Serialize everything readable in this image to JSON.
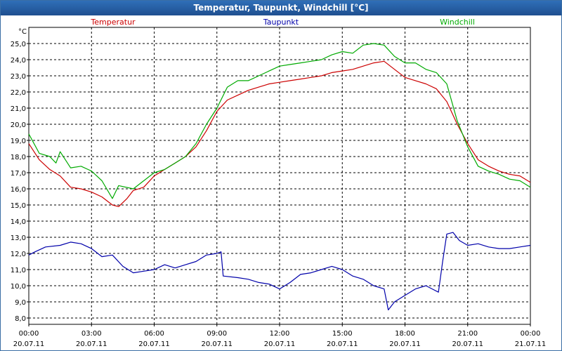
{
  "window": {
    "title": "Temperatur, Taupunkt, Windchill [°C]"
  },
  "chart_data": {
    "type": "line",
    "title": "Temperatur, Taupunkt, Windchill [°C]",
    "ylabel": "°C",
    "ylim": [
      8.0,
      25.0
    ],
    "xlim": [
      0,
      24
    ],
    "grid": true,
    "legend_placement": "top",
    "y_ticks": [
      "8,0",
      "9,0",
      "10,0",
      "11,0",
      "12,0",
      "13,0",
      "14,0",
      "15,0",
      "16,0",
      "17,0",
      "18,0",
      "19,0",
      "20,0",
      "21,0",
      "22,0",
      "23,0",
      "24,0",
      "25,0"
    ],
    "x_ticks": [
      {
        "time": "00:00",
        "date": "20.07.11"
      },
      {
        "time": "03:00",
        "date": "20.07.11"
      },
      {
        "time": "06:00",
        "date": "20.07.11"
      },
      {
        "time": "09:00",
        "date": "20.07.11"
      },
      {
        "time": "12:00",
        "date": "20.07.11"
      },
      {
        "time": "15:00",
        "date": "20.07.11"
      },
      {
        "time": "18:00",
        "date": "20.07.11"
      },
      {
        "time": "21:00",
        "date": "20.07.11"
      },
      {
        "time": "00:00",
        "date": "21.07.11"
      }
    ],
    "series": [
      {
        "name": "Temperatur",
        "color": "#cc0000",
        "points": [
          [
            0,
            18.8
          ],
          [
            0.5,
            17.8
          ],
          [
            1,
            17.2
          ],
          [
            1.5,
            16.8
          ],
          [
            2,
            16.1
          ],
          [
            2.5,
            16.0
          ],
          [
            3,
            15.8
          ],
          [
            3.5,
            15.5
          ],
          [
            4,
            15.0
          ],
          [
            4.3,
            14.9
          ],
          [
            4.7,
            15.4
          ],
          [
            5,
            15.9
          ],
          [
            5.5,
            16.1
          ],
          [
            6,
            16.8
          ],
          [
            6.5,
            17.2
          ],
          [
            7,
            17.6
          ],
          [
            7.5,
            18.0
          ],
          [
            8,
            18.6
          ],
          [
            8.5,
            19.6
          ],
          [
            9,
            20.8
          ],
          [
            9.5,
            21.5
          ],
          [
            10,
            21.8
          ],
          [
            10.5,
            22.1
          ],
          [
            11,
            22.3
          ],
          [
            11.5,
            22.5
          ],
          [
            12,
            22.6
          ],
          [
            12.5,
            22.7
          ],
          [
            13,
            22.8
          ],
          [
            13.5,
            22.9
          ],
          [
            14,
            23.0
          ],
          [
            14.5,
            23.2
          ],
          [
            15,
            23.3
          ],
          [
            15.5,
            23.4
          ],
          [
            16,
            23.6
          ],
          [
            16.5,
            23.8
          ],
          [
            17,
            23.9
          ],
          [
            17.5,
            23.4
          ],
          [
            18,
            22.9
          ],
          [
            18.5,
            22.7
          ],
          [
            19,
            22.5
          ],
          [
            19.5,
            22.2
          ],
          [
            20,
            21.4
          ],
          [
            20.5,
            20.0
          ],
          [
            21,
            18.8
          ],
          [
            21.5,
            17.8
          ],
          [
            22,
            17.4
          ],
          [
            22.5,
            17.1
          ],
          [
            23,
            16.9
          ],
          [
            23.5,
            16.8
          ],
          [
            24,
            16.4
          ]
        ]
      },
      {
        "name": "Taupunkt",
        "color": "#0000aa",
        "points": [
          [
            0,
            11.9
          ],
          [
            0.3,
            12.1
          ],
          [
            0.8,
            12.4
          ],
          [
            1.5,
            12.5
          ],
          [
            2,
            12.7
          ],
          [
            2.5,
            12.6
          ],
          [
            3,
            12.3
          ],
          [
            3.5,
            11.8
          ],
          [
            4,
            11.9
          ],
          [
            4.5,
            11.2
          ],
          [
            5,
            10.8
          ],
          [
            5.5,
            10.9
          ],
          [
            6,
            11.0
          ],
          [
            6.5,
            11.3
          ],
          [
            7,
            11.1
          ],
          [
            7.5,
            11.3
          ],
          [
            8,
            11.5
          ],
          [
            8.5,
            11.9
          ],
          [
            9,
            12.0
          ],
          [
            9.2,
            12.1
          ],
          [
            9.3,
            10.6
          ],
          [
            10,
            10.5
          ],
          [
            10.5,
            10.4
          ],
          [
            11,
            10.2
          ],
          [
            11.5,
            10.1
          ],
          [
            12,
            9.8
          ],
          [
            12.5,
            10.2
          ],
          [
            13,
            10.7
          ],
          [
            13.5,
            10.8
          ],
          [
            14,
            11.0
          ],
          [
            14.5,
            11.2
          ],
          [
            15,
            11.0
          ],
          [
            15.5,
            10.6
          ],
          [
            16,
            10.4
          ],
          [
            16.5,
            10.0
          ],
          [
            17,
            9.8
          ],
          [
            17.2,
            8.5
          ],
          [
            17.5,
            9.0
          ],
          [
            18,
            9.4
          ],
          [
            18.5,
            9.8
          ],
          [
            19,
            10.0
          ],
          [
            19.3,
            9.8
          ],
          [
            19.6,
            9.6
          ],
          [
            19.8,
            11.5
          ],
          [
            20,
            13.2
          ],
          [
            20.3,
            13.3
          ],
          [
            20.6,
            12.8
          ],
          [
            21,
            12.5
          ],
          [
            21.5,
            12.6
          ],
          [
            22,
            12.4
          ],
          [
            22.5,
            12.3
          ],
          [
            23,
            12.3
          ],
          [
            23.5,
            12.4
          ],
          [
            24,
            12.5
          ]
        ]
      },
      {
        "name": "Windchill",
        "color": "#00aa00",
        "points": [
          [
            0,
            19.4
          ],
          [
            0.5,
            18.2
          ],
          [
            1,
            18.0
          ],
          [
            1.3,
            17.6
          ],
          [
            1.5,
            18.3
          ],
          [
            2,
            17.3
          ],
          [
            2.5,
            17.4
          ],
          [
            3,
            17.1
          ],
          [
            3.5,
            16.5
          ],
          [
            4,
            15.4
          ],
          [
            4.3,
            16.2
          ],
          [
            5,
            16.0
          ],
          [
            5.5,
            16.5
          ],
          [
            6,
            17.0
          ],
          [
            6.5,
            17.2
          ],
          [
            7,
            17.6
          ],
          [
            7.5,
            18.0
          ],
          [
            8,
            18.8
          ],
          [
            8.5,
            20.0
          ],
          [
            9,
            21.0
          ],
          [
            9.5,
            22.3
          ],
          [
            10,
            22.7
          ],
          [
            10.5,
            22.7
          ],
          [
            11,
            23.0
          ],
          [
            11.5,
            23.3
          ],
          [
            12,
            23.6
          ],
          [
            12.5,
            23.7
          ],
          [
            13,
            23.8
          ],
          [
            13.5,
            23.9
          ],
          [
            14,
            24.0
          ],
          [
            14.5,
            24.3
          ],
          [
            15,
            24.5
          ],
          [
            15.5,
            24.4
          ],
          [
            16,
            24.9
          ],
          [
            16.5,
            25.0
          ],
          [
            17,
            24.9
          ],
          [
            17.5,
            24.2
          ],
          [
            18,
            23.8
          ],
          [
            18.5,
            23.8
          ],
          [
            19,
            23.4
          ],
          [
            19.5,
            23.2
          ],
          [
            20,
            22.5
          ],
          [
            20.5,
            20.2
          ],
          [
            21,
            18.6
          ],
          [
            21.5,
            17.4
          ],
          [
            22,
            17.1
          ],
          [
            22.5,
            16.9
          ],
          [
            23,
            16.6
          ],
          [
            23.5,
            16.5
          ],
          [
            24,
            16.1
          ]
        ]
      }
    ]
  }
}
